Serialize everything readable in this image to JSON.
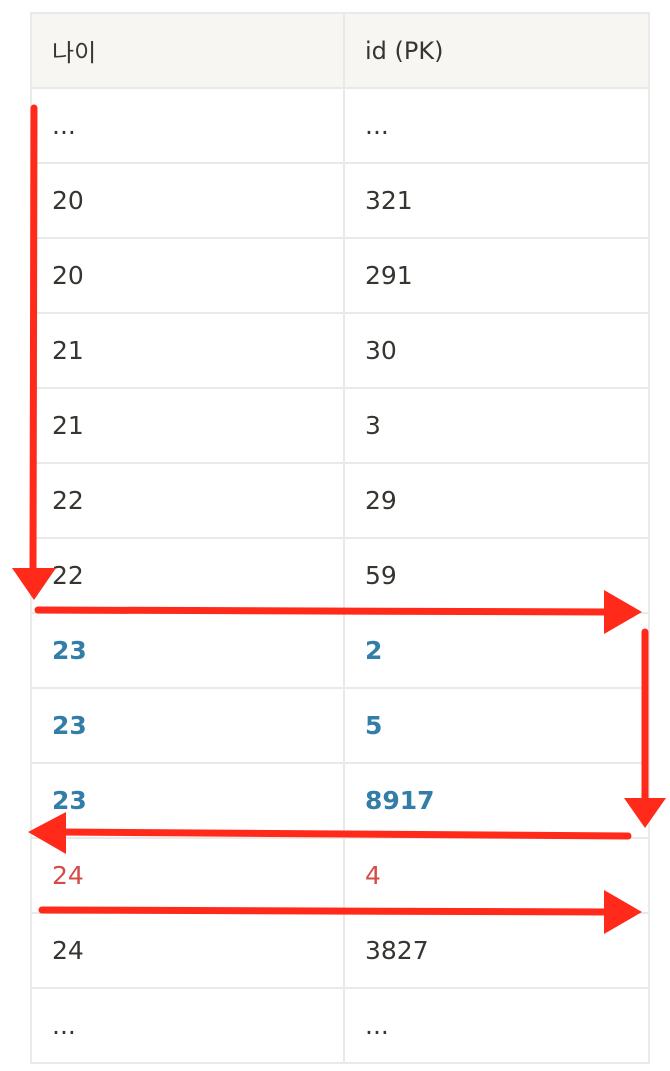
{
  "table": {
    "headers": [
      "나이",
      "id (PK)"
    ],
    "rows": [
      {
        "age": "...",
        "id": "...",
        "style": "normal"
      },
      {
        "age": "20",
        "id": "321",
        "style": "normal"
      },
      {
        "age": "20",
        "id": "291",
        "style": "normal"
      },
      {
        "age": "21",
        "id": "30",
        "style": "normal"
      },
      {
        "age": "21",
        "id": "3",
        "style": "normal"
      },
      {
        "age": "22",
        "id": "29",
        "style": "normal"
      },
      {
        "age": "22",
        "id": "59",
        "style": "normal"
      },
      {
        "age": "23",
        "id": "2",
        "style": "blue"
      },
      {
        "age": "23",
        "id": "5",
        "style": "blue"
      },
      {
        "age": "23",
        "id": "8917",
        "style": "blue"
      },
      {
        "age": "24",
        "id": "4",
        "style": "red"
      },
      {
        "age": "24",
        "id": "3827",
        "style": "normal"
      },
      {
        "age": "...",
        "id": "...",
        "style": "normal"
      }
    ]
  },
  "colors": {
    "highlight_blue": "#337ea9",
    "highlight_red": "#d44c47",
    "arrow": "#ff2a1a",
    "header_bg": "#f7f6f3",
    "border": "#e9e9e7",
    "text": "#37352f"
  },
  "annotations": {
    "arrow_icon": "red-hand-drawn-scan-path-arrows"
  }
}
